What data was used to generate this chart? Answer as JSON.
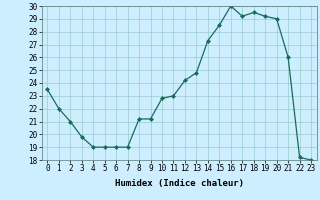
{
  "x": [
    0,
    1,
    2,
    3,
    4,
    5,
    6,
    7,
    8,
    9,
    10,
    11,
    12,
    13,
    14,
    15,
    16,
    17,
    18,
    19,
    20,
    21,
    22,
    23
  ],
  "y": [
    23.5,
    22.0,
    21.0,
    19.8,
    19.0,
    19.0,
    19.0,
    19.0,
    21.2,
    21.2,
    22.8,
    23.0,
    24.2,
    24.8,
    27.3,
    28.5,
    30.0,
    29.2,
    29.5,
    29.2,
    29.0,
    26.0,
    18.2,
    18.0
  ],
  "xlabel": "Humidex (Indice chaleur)",
  "xlim": [
    -0.5,
    23.5
  ],
  "ylim": [
    18,
    30
  ],
  "yticks": [
    18,
    19,
    20,
    21,
    22,
    23,
    24,
    25,
    26,
    27,
    28,
    29,
    30
  ],
  "xticks": [
    0,
    1,
    2,
    3,
    4,
    5,
    6,
    7,
    8,
    9,
    10,
    11,
    12,
    13,
    14,
    15,
    16,
    17,
    18,
    19,
    20,
    21,
    22,
    23
  ],
  "line_color": "#1a6b5a",
  "marker": "D",
  "marker_size": 2.0,
  "bg_color": "#cceeff",
  "grid_color": "#99cccc",
  "label_fontsize": 6.5,
  "tick_fontsize": 5.5
}
